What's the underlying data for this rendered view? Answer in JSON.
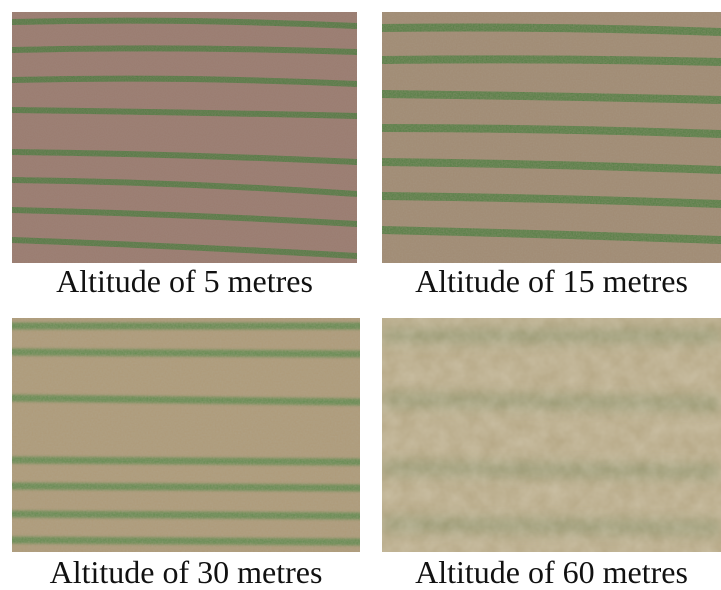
{
  "panels": [
    {
      "caption": "Altitude of 5 metres",
      "soil": "#9a7b6e",
      "crop": "#3f7a35"
    },
    {
      "caption": "Altitude of 15 metres",
      "soil": "#a08a72",
      "crop": "#3e7a36"
    },
    {
      "caption": "Altitude of 30 metres",
      "soil": "#ae9a78",
      "crop": "#4a8440"
    },
    {
      "caption": "Altitude of 60 metres",
      "soil": "#b6a886",
      "crop": "#8a9068"
    }
  ]
}
